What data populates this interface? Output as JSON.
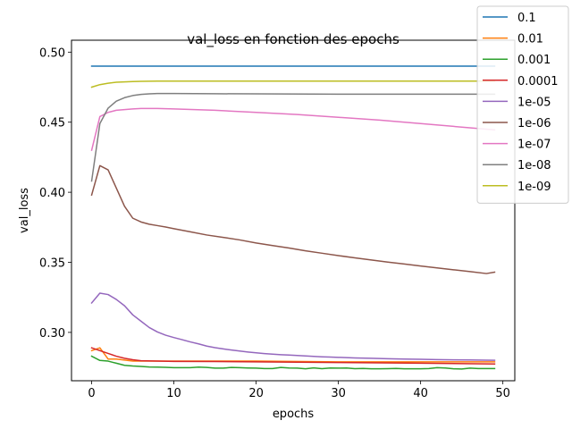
{
  "chart_data": {
    "type": "line",
    "title": "val_loss en fonction des epochs",
    "xlabel": "epochs",
    "ylabel": "val_loss",
    "xlim": [
      -2.45,
      51.45
    ],
    "ylim": [
      0.2655,
      0.5085
    ],
    "xticks": [
      0,
      10,
      20,
      30,
      40,
      50
    ],
    "yticks": [
      0.3,
      0.35,
      0.4,
      0.45,
      0.5
    ],
    "ytick_labels": [
      "0.30",
      "0.35",
      "0.40",
      "0.45",
      "0.50"
    ],
    "grid": false,
    "legend_position": "top-right",
    "series": [
      {
        "name": "0.1",
        "color": "#1f77b4",
        "points": [
          [
            0,
            0.49
          ],
          [
            49,
            0.49
          ]
        ]
      },
      {
        "name": "0.01",
        "color": "#ff7f0e",
        "points": [
          [
            0,
            0.287
          ],
          [
            1,
            0.289
          ],
          [
            2,
            0.281
          ],
          [
            3,
            0.281
          ],
          [
            5,
            0.2795
          ],
          [
            10,
            0.2795
          ],
          [
            20,
            0.2795
          ],
          [
            30,
            0.279
          ],
          [
            40,
            0.279
          ],
          [
            49,
            0.279
          ]
        ]
      },
      {
        "name": "0.001",
        "color": "#2ca02c",
        "points": [
          [
            0,
            0.283
          ],
          [
            1,
            0.28
          ],
          [
            2,
            0.2795
          ],
          [
            3,
            0.278
          ],
          [
            4,
            0.2765
          ],
          [
            5,
            0.276
          ],
          [
            6,
            0.2757
          ],
          [
            7,
            0.2753
          ],
          [
            8,
            0.2752
          ],
          [
            9,
            0.2751
          ],
          [
            10,
            0.2748
          ],
          [
            11,
            0.2748
          ],
          [
            12,
            0.2748
          ],
          [
            13,
            0.2752
          ],
          [
            14,
            0.275
          ],
          [
            15,
            0.2745
          ],
          [
            16,
            0.2745
          ],
          [
            17,
            0.275
          ],
          [
            18,
            0.2748
          ],
          [
            19,
            0.2746
          ],
          [
            20,
            0.2745
          ],
          [
            21,
            0.2742
          ],
          [
            22,
            0.2742
          ],
          [
            23,
            0.275
          ],
          [
            24,
            0.2746
          ],
          [
            25,
            0.2745
          ],
          [
            26,
            0.274
          ],
          [
            27,
            0.2747
          ],
          [
            28,
            0.2741
          ],
          [
            29,
            0.2746
          ],
          [
            30,
            0.2745
          ],
          [
            31,
            0.2746
          ],
          [
            32,
            0.2741
          ],
          [
            33,
            0.2743
          ],
          [
            34,
            0.274
          ],
          [
            35,
            0.274
          ],
          [
            36,
            0.2741
          ],
          [
            37,
            0.2743
          ],
          [
            38,
            0.274
          ],
          [
            39,
            0.274
          ],
          [
            40,
            0.274
          ],
          [
            41,
            0.2742
          ],
          [
            42,
            0.2748
          ],
          [
            43,
            0.2746
          ],
          [
            44,
            0.274
          ],
          [
            45,
            0.2739
          ],
          [
            46,
            0.2745
          ],
          [
            47,
            0.2742
          ],
          [
            48,
            0.2742
          ],
          [
            49,
            0.2742
          ]
        ]
      },
      {
        "name": "0.0001",
        "color": "#d62728",
        "points": [
          [
            0,
            0.289
          ],
          [
            1,
            0.287
          ],
          [
            2,
            0.285
          ],
          [
            3,
            0.283
          ],
          [
            4,
            0.2815
          ],
          [
            5,
            0.2805
          ],
          [
            6,
            0.2798
          ],
          [
            8,
            0.2795
          ],
          [
            10,
            0.2793
          ],
          [
            15,
            0.2792
          ],
          [
            20,
            0.279
          ],
          [
            30,
            0.2785
          ],
          [
            40,
            0.278
          ],
          [
            49,
            0.2775
          ]
        ]
      },
      {
        "name": "1e-05",
        "color": "#9467bd",
        "points": [
          [
            0,
            0.321
          ],
          [
            1,
            0.328
          ],
          [
            2,
            0.327
          ],
          [
            3,
            0.3235
          ],
          [
            4,
            0.319
          ],
          [
            5,
            0.3125
          ],
          [
            6,
            0.308
          ],
          [
            7,
            0.3035
          ],
          [
            8,
            0.3003
          ],
          [
            9,
            0.298
          ],
          [
            10,
            0.2963
          ],
          [
            11,
            0.2948
          ],
          [
            12,
            0.2932
          ],
          [
            13,
            0.2918
          ],
          [
            14,
            0.2902
          ],
          [
            15,
            0.2891
          ],
          [
            16,
            0.2882
          ],
          [
            17,
            0.2874
          ],
          [
            18,
            0.2867
          ],
          [
            19,
            0.286
          ],
          [
            20,
            0.2854
          ],
          [
            21,
            0.2849
          ],
          [
            22,
            0.2845
          ],
          [
            23,
            0.2841
          ],
          [
            24,
            0.2838
          ],
          [
            25,
            0.2835
          ],
          [
            26,
            0.2832
          ],
          [
            27,
            0.2829
          ],
          [
            28,
            0.2826
          ],
          [
            29,
            0.2824
          ],
          [
            30,
            0.2822
          ],
          [
            32,
            0.2818
          ],
          [
            34,
            0.2815
          ],
          [
            36,
            0.2812
          ],
          [
            38,
            0.281
          ],
          [
            40,
            0.2808
          ],
          [
            42,
            0.2806
          ],
          [
            44,
            0.2804
          ],
          [
            46,
            0.2803
          ],
          [
            48,
            0.2802
          ],
          [
            49,
            0.2801
          ]
        ]
      },
      {
        "name": "1e-06",
        "color": "#8c564b",
        "points": [
          [
            0,
            0.398
          ],
          [
            1,
            0.419
          ],
          [
            2,
            0.416
          ],
          [
            3,
            0.403
          ],
          [
            4,
            0.39
          ],
          [
            5,
            0.3815
          ],
          [
            6,
            0.3788
          ],
          [
            7,
            0.3772
          ],
          [
            8,
            0.3762
          ],
          [
            9,
            0.3752
          ],
          [
            10,
            0.374
          ],
          [
            12,
            0.3718
          ],
          [
            14,
            0.3695
          ],
          [
            16,
            0.3678
          ],
          [
            18,
            0.366
          ],
          [
            20,
            0.3638
          ],
          [
            22,
            0.362
          ],
          [
            24,
            0.3602
          ],
          [
            26,
            0.3582
          ],
          [
            28,
            0.3565
          ],
          [
            30,
            0.3548
          ],
          [
            32,
            0.3532
          ],
          [
            34,
            0.3517
          ],
          [
            36,
            0.3502
          ],
          [
            38,
            0.3488
          ],
          [
            40,
            0.3474
          ],
          [
            42,
            0.346
          ],
          [
            44,
            0.3447
          ],
          [
            46,
            0.3434
          ],
          [
            48,
            0.342
          ],
          [
            49,
            0.343
          ]
        ]
      },
      {
        "name": "1e-07",
        "color": "#e377c2",
        "points": [
          [
            0,
            0.43
          ],
          [
            1,
            0.454
          ],
          [
            2,
            0.457
          ],
          [
            3,
            0.4585
          ],
          [
            4,
            0.459
          ],
          [
            5,
            0.4595
          ],
          [
            6,
            0.4598
          ],
          [
            8,
            0.4598
          ],
          [
            10,
            0.4595
          ],
          [
            15,
            0.4585
          ],
          [
            20,
            0.457
          ],
          [
            25,
            0.4555
          ],
          [
            30,
            0.4535
          ],
          [
            35,
            0.4515
          ],
          [
            40,
            0.449
          ],
          [
            45,
            0.4465
          ],
          [
            49,
            0.4445
          ]
        ]
      },
      {
        "name": "1e-08",
        "color": "#7f7f7f",
        "points": [
          [
            0,
            0.408
          ],
          [
            1,
            0.449
          ],
          [
            2,
            0.46
          ],
          [
            3,
            0.465
          ],
          [
            4,
            0.4675
          ],
          [
            5,
            0.469
          ],
          [
            6,
            0.4698
          ],
          [
            7,
            0.4702
          ],
          [
            8,
            0.4705
          ],
          [
            10,
            0.4705
          ],
          [
            15,
            0.4703
          ],
          [
            20,
            0.4702
          ],
          [
            30,
            0.47
          ],
          [
            40,
            0.47
          ],
          [
            49,
            0.47
          ]
        ]
      },
      {
        "name": "1e-09",
        "color": "#bcbd22",
        "points": [
          [
            0,
            0.475
          ],
          [
            1,
            0.4768
          ],
          [
            2,
            0.4778
          ],
          [
            3,
            0.4785
          ],
          [
            4,
            0.4788
          ],
          [
            5,
            0.479
          ],
          [
            6,
            0.4792
          ],
          [
            8,
            0.4793
          ],
          [
            15,
            0.4793
          ],
          [
            20,
            0.4793
          ],
          [
            30,
            0.4793
          ],
          [
            40,
            0.4793
          ],
          [
            49,
            0.4793
          ]
        ]
      }
    ]
  }
}
